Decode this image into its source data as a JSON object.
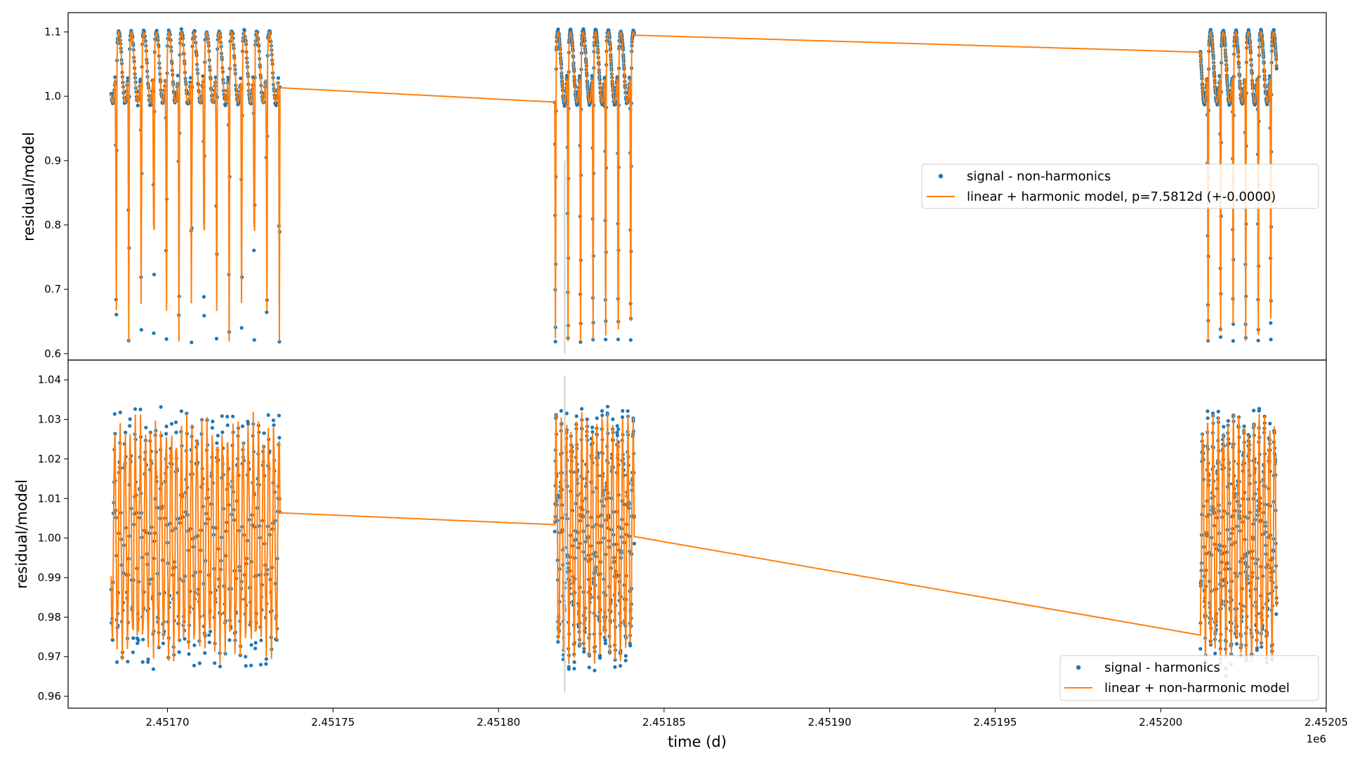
{
  "chart_data": [
    {
      "type": "scatter",
      "panel": "top",
      "ylabel": "residual/model",
      "xlabel": "",
      "xlim": [
        2.45167,
        2.45205
      ],
      "ylim": [
        0.59,
        1.13
      ],
      "yticks": [
        0.6,
        0.7,
        0.8,
        0.9,
        1.0,
        1.1
      ],
      "ytick_labels": [
        "0.6",
        "0.7",
        "0.8",
        "0.9",
        "1.0",
        "1.1"
      ],
      "x_scale_label": "1e6",
      "grid": false,
      "legend_position": "center-right",
      "vertical_marker_x": 2.45182,
      "series": [
        {
          "name": "signal - non-harmonics",
          "kind": "scatter",
          "color": "#1f77b4"
        },
        {
          "name": "linear + harmonic model, p=7.5812d (+-0.0000)",
          "kind": "line",
          "color": "#ff7f0e"
        }
      ],
      "segments": [
        [
          2.451683,
          2.451734
        ],
        [
          2.451817,
          2.451841
        ],
        [
          2.452012,
          2.452035
        ]
      ],
      "signal_shape": {
        "period_d": 7.5812,
        "baseline": 1.05,
        "peak": 1.11,
        "dip_min": 0.615
      }
    },
    {
      "type": "scatter",
      "panel": "bottom",
      "ylabel": "residual/model",
      "xlabel": "time (d)",
      "xlim": [
        2.45167,
        2.45205
      ],
      "ylim": [
        0.957,
        1.045
      ],
      "yticks": [
        0.96,
        0.97,
        0.98,
        0.99,
        1.0,
        1.01,
        1.02,
        1.03,
        1.04
      ],
      "ytick_labels": [
        "0.96",
        "0.97",
        "0.98",
        "0.99",
        "1.00",
        "1.01",
        "1.02",
        "1.03",
        "1.04"
      ],
      "xticks": [
        2.4517,
        2.45175,
        2.4518,
        2.45185,
        2.4519,
        2.45195,
        2.452,
        2.45205
      ],
      "xtick_labels": [
        "2.45170",
        "2.45175",
        "2.45180",
        "2.45185",
        "2.45190",
        "2.45195",
        "2.45200",
        "2.45205"
      ],
      "x_scale_label": "1e6",
      "grid": false,
      "legend_position": "lower-right",
      "vertical_marker_x": 2.45182,
      "series": [
        {
          "name": "signal - harmonics",
          "kind": "scatter",
          "color": "#1f77b4"
        },
        {
          "name": "linear + non-harmonic model",
          "kind": "line",
          "color": "#ff7f0e"
        }
      ],
      "segments": [
        [
          2.451683,
          2.451734
        ],
        [
          2.451817,
          2.451841
        ],
        [
          2.452012,
          2.452035
        ]
      ],
      "signal_shape": {
        "center": 1.0,
        "amplitude": 0.028
      }
    }
  ]
}
